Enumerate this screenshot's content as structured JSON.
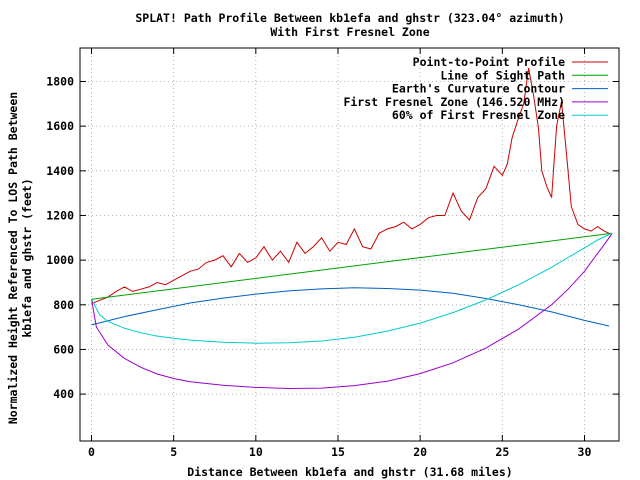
{
  "chart_data": {
    "type": "line",
    "title_line1": "SPLAT! Path Profile Between kb1efa and ghstr (323.04° azimuth)",
    "title_line2": "With First Fresnel Zone",
    "xlabel": "Distance Between kb1efa and ghstr (31.68 miles)",
    "ylabel_line1": "Normalized Height Referenced To LOS Path Between",
    "ylabel_line2": "kb1efa and ghstr (feet)",
    "xlim": [
      -0.7,
      32.1
    ],
    "ylim": [
      190,
      1950
    ],
    "x_ticks": [
      0,
      5,
      10,
      15,
      20,
      25,
      30
    ],
    "x_tick_labels": [
      "0",
      "5",
      "10",
      "15",
      "20",
      "25",
      "30"
    ],
    "y_ticks": [
      400,
      600,
      800,
      1000,
      1200,
      1400,
      1600,
      1800
    ],
    "y_tick_labels": [
      "400",
      "600",
      "800",
      "1000",
      "1200",
      "1400",
      "1600",
      "1800"
    ],
    "grid": true,
    "legend_position": "top-right",
    "series": [
      {
        "name": "Point-to-Point Profile",
        "color": "#cc0000",
        "x": [
          0,
          0.5,
          1,
          1.5,
          2,
          2.5,
          3,
          3.5,
          4,
          4.5,
          5,
          5.5,
          6,
          6.5,
          7,
          7.5,
          8,
          8.5,
          9,
          9.5,
          10,
          10.5,
          11,
          11.5,
          12,
          12.5,
          13,
          13.5,
          14,
          14.5,
          15,
          15.5,
          16,
          16.5,
          17,
          17.5,
          18,
          18.5,
          19,
          19.5,
          20,
          20.5,
          21,
          21.5,
          22,
          22.5,
          23,
          23.5,
          24,
          24.5,
          25,
          25.3,
          25.6,
          26,
          26.3,
          26.6,
          26.9,
          27.2,
          27.4,
          27.7,
          28,
          28.3,
          28.6,
          28.9,
          29.2,
          29.6,
          30,
          30.4,
          30.8,
          31.2,
          31.5
        ],
        "y": [
          805,
          820,
          835,
          860,
          880,
          860,
          870,
          880,
          900,
          890,
          910,
          930,
          950,
          960,
          990,
          1000,
          1020,
          970,
          1030,
          990,
          1010,
          1060,
          1000,
          1040,
          990,
          1080,
          1030,
          1060,
          1100,
          1040,
          1080,
          1070,
          1140,
          1060,
          1050,
          1120,
          1140,
          1150,
          1170,
          1140,
          1160,
          1190,
          1200,
          1200,
          1300,
          1220,
          1180,
          1280,
          1320,
          1420,
          1380,
          1430,
          1550,
          1640,
          1700,
          1860,
          1740,
          1590,
          1400,
          1330,
          1280,
          1600,
          1710,
          1480,
          1240,
          1160,
          1140,
          1130,
          1150,
          1130,
          1120
        ]
      },
      {
        "name": "Line of Sight Path",
        "color": "#00a000",
        "x": [
          0,
          31.68
        ],
        "y": [
          825,
          1120
        ]
      },
      {
        "name": "Earth's Curvature Contour",
        "color": "#0060c0",
        "x": [
          0,
          2,
          4,
          6,
          8,
          10,
          12,
          14,
          16,
          18,
          20,
          22,
          24,
          26,
          28,
          30,
          31.5
        ],
        "y": [
          710,
          747,
          778,
          808,
          830,
          848,
          862,
          871,
          876,
          873,
          866,
          852,
          828,
          800,
          768,
          730,
          705
        ]
      },
      {
        "name": "First Fresnel Zone (146.520 MHz)",
        "color": "#9900cc",
        "x": [
          0,
          0.3,
          1,
          2,
          3,
          4,
          5,
          6,
          8,
          10,
          12,
          14,
          16,
          18,
          20,
          22,
          24,
          26,
          28,
          29,
          30,
          30.8,
          31.3,
          31.68
        ],
        "y": [
          825,
          700,
          620,
          560,
          520,
          490,
          470,
          455,
          440,
          430,
          425,
          427,
          438,
          458,
          492,
          540,
          606,
          692,
          800,
          870,
          950,
          1030,
          1080,
          1120
        ]
      },
      {
        "name": "60% of First Fresnel Zone",
        "color": "#00cccc",
        "x": [
          0,
          0.5,
          1,
          2,
          3,
          4,
          5,
          6,
          8,
          10,
          12,
          14,
          16,
          18,
          20,
          22,
          24,
          26,
          28,
          29,
          30,
          30.8,
          31.3,
          31.68
        ],
        "y": [
          825,
          755,
          725,
          695,
          675,
          660,
          650,
          642,
          632,
          628,
          630,
          638,
          655,
          682,
          718,
          765,
          822,
          890,
          968,
          1012,
          1055,
          1090,
          1108,
          1120
        ]
      }
    ]
  }
}
